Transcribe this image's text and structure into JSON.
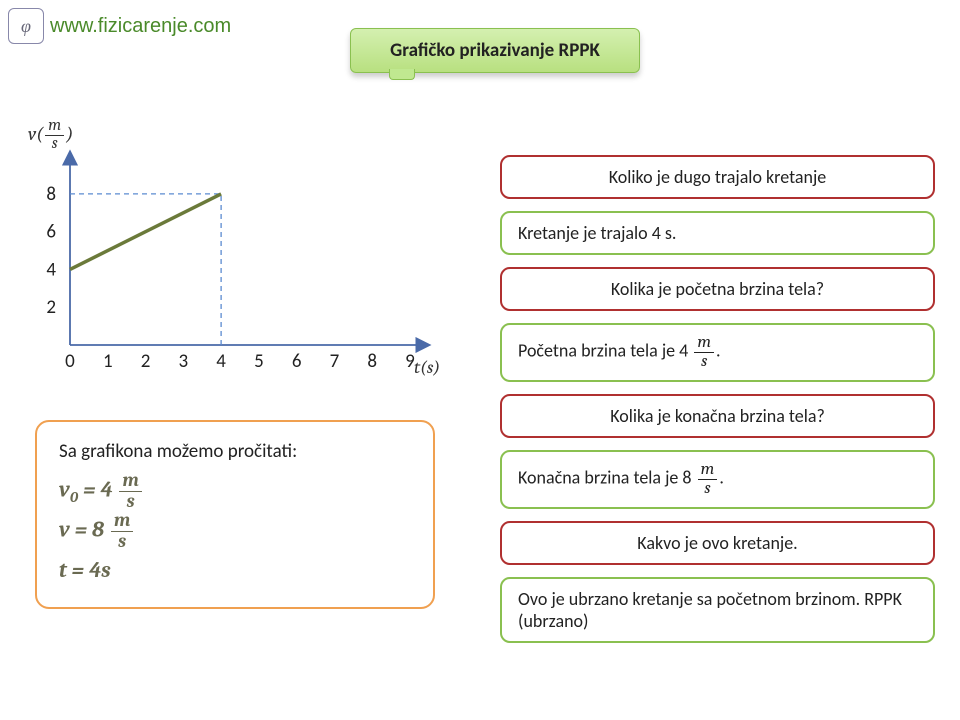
{
  "logo": {
    "glyph": "φ",
    "url_text": "www.fizicarenje.com",
    "text_color": "#4a8a2a"
  },
  "title": "Grafičko prikazivanje RPPK",
  "title_banner": {
    "bg_gradient_top": "#d4f0b0",
    "bg_gradient_bottom": "#b8e080",
    "border_color": "#8ac050"
  },
  "chart": {
    "type": "line",
    "y_label_prefix": "v(",
    "y_label_unit_num": "m",
    "y_label_unit_den": "s",
    "y_label_suffix": ")",
    "x_label": "t(s)",
    "x_ticks": [
      0,
      1,
      2,
      3,
      4,
      5,
      6,
      7,
      8,
      9
    ],
    "y_ticks": [
      2,
      4,
      6,
      8
    ],
    "xlim": [
      0,
      9
    ],
    "ylim": [
      0,
      9
    ],
    "line_points": [
      [
        0,
        4
      ],
      [
        4,
        8
      ]
    ],
    "line_color": "#6b7a3a",
    "line_width": 3.5,
    "dashed_guides": [
      {
        "from": [
          0,
          8
        ],
        "to": [
          4,
          8
        ]
      },
      {
        "from": [
          4,
          0
        ],
        "to": [
          4,
          8
        ]
      }
    ],
    "guide_color": "#5b8bd0",
    "axis_color": "#4a6aa8",
    "tick_font_size": 19
  },
  "read_box": {
    "intro": "Sa grafikona možemo pročitati:",
    "border_color": "#f0a050",
    "lines": [
      {
        "lhs": "v",
        "sub": "0",
        "eq": "= 4",
        "unit_num": "m",
        "unit_den": "s"
      },
      {
        "lhs": "v",
        "sub": "",
        "eq": "= 8",
        "unit_num": "m",
        "unit_den": "s"
      },
      {
        "lhs": "t",
        "sub": "",
        "eq": "= 4s",
        "unit_num": "",
        "unit_den": ""
      }
    ],
    "eq_color": "#6a6a52"
  },
  "qa": [
    {
      "kind": "q",
      "text": "Koliko je dugo trajalo kretanje",
      "border": "#b03030"
    },
    {
      "kind": "a",
      "text": "Kretanje je trajalo 4 s.",
      "border": "#8ac050"
    },
    {
      "kind": "q",
      "text": "Kolika je početna brzina tela?",
      "border": "#b03030"
    },
    {
      "kind": "a",
      "html": true,
      "prefix": "Početna brzina tela je 4 ",
      "unit_num": "m",
      "unit_den": "s",
      "suffix": ".",
      "border": "#8ac050"
    },
    {
      "kind": "q",
      "text": "Kolika je konačna brzina tela?",
      "border": "#b03030"
    },
    {
      "kind": "a",
      "html": true,
      "prefix": "Konačna brzina tela je 8 ",
      "unit_num": "m",
      "unit_den": "s",
      "suffix": ".",
      "border": "#8ac050"
    },
    {
      "kind": "q",
      "text": "Kakvo je ovo kretanje.",
      "border": "#b03030"
    },
    {
      "kind": "a",
      "text": "Ovo je ubrzano kretanje sa početnom brzinom. RPPK (ubrzano)",
      "border": "#8ac050"
    }
  ]
}
